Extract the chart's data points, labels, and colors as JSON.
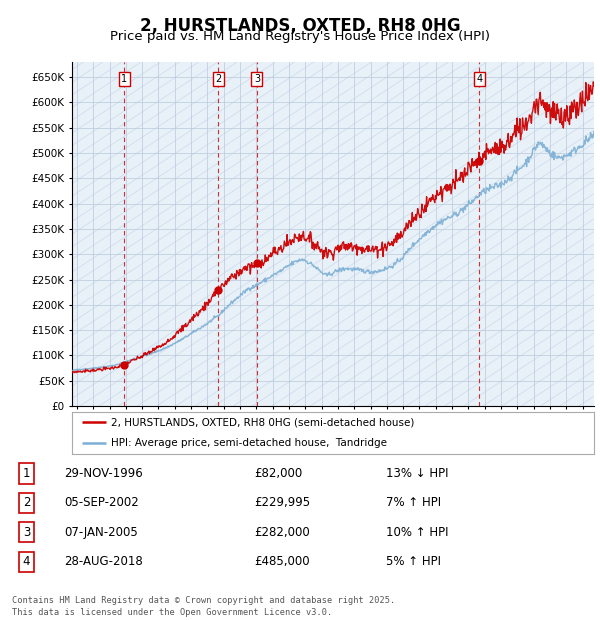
{
  "title": "2, HURSTLANDS, OXTED, RH8 0HG",
  "subtitle": "Price paid vs. HM Land Registry's House Price Index (HPI)",
  "legend_line1": "2, HURSTLANDS, OXTED, RH8 0HG (semi-detached house)",
  "legend_line2": "HPI: Average price, semi-detached house,  Tandridge",
  "footer": "Contains HM Land Registry data © Crown copyright and database right 2025.\nThis data is licensed under the Open Government Licence v3.0.",
  "sale_year_floats": [
    1996.9,
    2002.67,
    2005.04,
    2018.67
  ],
  "sale_prices": [
    82000,
    229995,
    282000,
    485000
  ],
  "sale_labels": [
    "1",
    "2",
    "3",
    "4"
  ],
  "sale_notes": [
    "29-NOV-1996",
    "05-SEP-2002",
    "07-JAN-2005",
    "28-AUG-2018"
  ],
  "sale_price_labels": [
    "£82,000",
    "£229,995",
    "£282,000",
    "£485,000"
  ],
  "sale_hpi_notes": [
    "13% ↓ HPI",
    "7% ↑ HPI",
    "10% ↑ HPI",
    "5% ↑ HPI"
  ],
  "hpi_color": "#7bafd4",
  "price_color": "#cc0000",
  "background_color": "#ffffff",
  "chart_bg_color": "#e8f0f8",
  "grid_color": "#b8c8dc",
  "ylim": [
    0,
    680000
  ],
  "yticks": [
    0,
    50000,
    100000,
    150000,
    200000,
    250000,
    300000,
    350000,
    400000,
    450000,
    500000,
    550000,
    600000,
    650000
  ],
  "xstart": 1993.7,
  "xend": 2025.7,
  "title_fontsize": 12,
  "subtitle_fontsize": 9.5
}
